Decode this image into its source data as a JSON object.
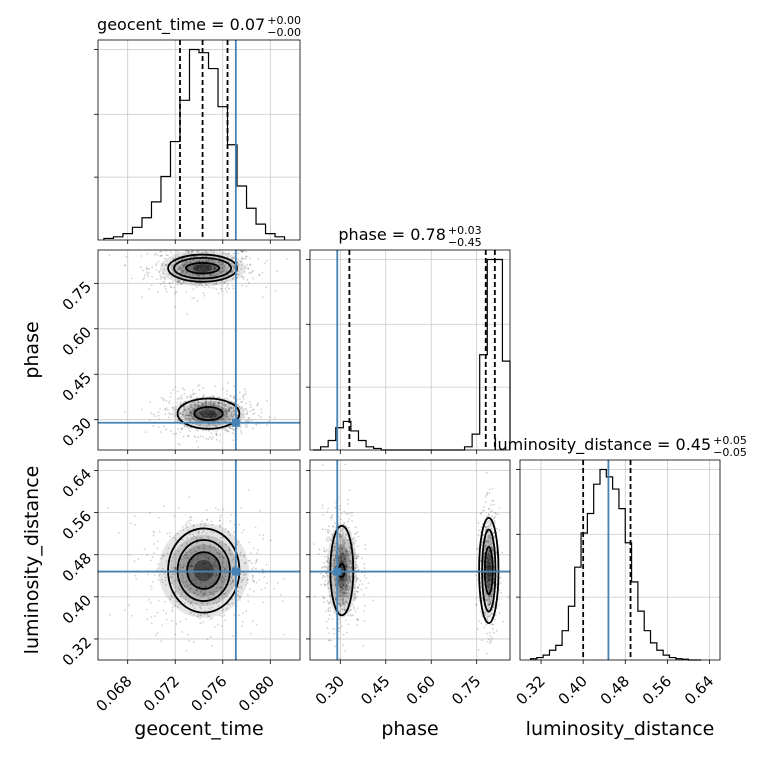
{
  "chart_data": {
    "type": "corner",
    "truth_color": "#4682b4",
    "parameters": [
      "geocent_time",
      "phase",
      "luminosity_distance"
    ],
    "grid": true,
    "subplots": [
      {
        "kind": "histogram",
        "parameter": "geocent_time",
        "title_main": "geocent_time = 0.07",
        "title_sup": "+0.00",
        "title_sub": "−0.00",
        "xlim": [
          0.0655,
          0.0825
        ],
        "bin_edges": [
          0.066,
          0.0668,
          0.0676,
          0.0684,
          0.0692,
          0.07,
          0.0708,
          0.0716,
          0.0724,
          0.0732,
          0.074,
          0.0748,
          0.0756,
          0.0764,
          0.0772,
          0.078,
          0.0788,
          0.0796,
          0.0804,
          0.0812
        ],
        "counts": [
          0.5,
          1,
          2,
          4,
          7,
          12,
          20,
          31,
          44,
          60,
          59,
          54,
          42,
          30,
          17,
          10,
          5,
          2,
          1
        ],
        "quantile_lines": [
          0.0724,
          0.0743,
          0.0764
        ],
        "truth": 0.0771
      },
      {
        "kind": "histogram",
        "parameter": "phase",
        "title_main": "phase = 0.78",
        "title_sup": "+0.03",
        "title_sub": "−0.45",
        "xlim": [
          0.2,
          0.86
        ],
        "bin_edges": [
          0.21,
          0.235,
          0.26,
          0.285,
          0.31,
          0.335,
          0.36,
          0.385,
          0.41,
          0.435,
          0.46,
          0.485,
          0.51,
          0.535,
          0.56,
          0.585,
          0.61,
          0.635,
          0.66,
          0.685,
          0.71,
          0.735,
          0.76,
          0.785,
          0.81,
          0.835,
          0.86
        ],
        "counts": [
          0,
          1,
          3,
          7,
          9,
          6,
          3,
          1,
          0.5,
          0,
          0,
          0,
          0,
          0,
          0,
          0,
          0,
          0,
          0,
          0,
          1,
          5,
          30,
          60,
          60,
          28
        ],
        "quantile_lines": [
          0.33,
          0.78,
          0.81
        ],
        "truth": 0.29
      },
      {
        "kind": "scatter2d",
        "x_parameter": "geocent_time",
        "y_parameter": "phase",
        "xlim": [
          0.0655,
          0.0825
        ],
        "ylim": [
          0.2,
          0.86
        ],
        "clusters": [
          {
            "center": [
              0.0743,
              0.8
            ],
            "spread": [
              0.0018,
              0.03
            ],
            "contours": [
              [
                0.0029,
                0.045
              ],
              [
                0.0024,
                0.034
              ],
              [
                0.0014,
                0.017
              ]
            ]
          },
          {
            "center": [
              0.0748,
              0.32
            ],
            "spread": [
              0.0015,
              0.028
            ],
            "contours": [
              [
                0.0026,
                0.05
              ],
              [
                0.0012,
                0.022
              ]
            ]
          }
        ],
        "truth": [
          0.0771,
          0.29
        ]
      },
      {
        "kind": "histogram",
        "parameter": "luminosity_distance",
        "title_main": "luminosity_distance = 0.45",
        "title_sup": "+0.05",
        "title_sub": "−0.05",
        "xlim": [
          0.28,
          0.66
        ],
        "bin_edges": [
          0.3,
          0.312,
          0.324,
          0.336,
          0.348,
          0.36,
          0.372,
          0.384,
          0.396,
          0.408,
          0.42,
          0.432,
          0.444,
          0.456,
          0.468,
          0.48,
          0.492,
          0.504,
          0.516,
          0.528,
          0.54,
          0.552,
          0.564,
          0.576,
          0.588,
          0.6,
          0.612,
          0.624
        ],
        "counts": [
          0.5,
          1,
          2,
          4,
          6,
          12,
          22,
          38,
          52,
          60,
          72,
          78,
          75,
          70,
          62,
          48,
          32,
          20,
          12,
          7,
          4,
          2,
          1,
          0.5,
          0.3,
          0,
          0
        ],
        "quantile_lines": [
          0.4,
          0.49
        ],
        "truth": 0.448
      },
      {
        "kind": "scatter2d",
        "x_parameter": "geocent_time",
        "y_parameter": "luminosity_distance",
        "xlim": [
          0.0655,
          0.0825
        ],
        "ylim": [
          0.28,
          0.66
        ],
        "clusters": [
          {
            "center": [
              0.0744,
              0.45
            ],
            "spread": [
              0.0019,
              0.045
            ],
            "contours": [
              [
                0.003,
                0.08
              ],
              [
                0.0022,
                0.058
              ],
              [
                0.0014,
                0.035
              ]
            ]
          }
        ],
        "truth": [
          0.0771,
          0.448
        ]
      },
      {
        "kind": "scatter2d",
        "x_parameter": "phase",
        "y_parameter": "luminosity_distance",
        "xlim": [
          0.2,
          0.86
        ],
        "ylim": [
          0.28,
          0.66
        ],
        "clusters": [
          {
            "center": [
              0.305,
              0.45
            ],
            "spread": [
              0.025,
              0.045
            ],
            "contours": [
              [
                0.038,
                0.085
              ],
              [
                0.01,
                0.012
              ]
            ]
          },
          {
            "center": [
              0.79,
              0.45
            ],
            "spread": [
              0.012,
              0.045
            ],
            "contours": [
              [
                0.032,
                0.1
              ],
              [
                0.022,
                0.078
              ],
              [
                0.013,
                0.045
              ]
            ]
          }
        ],
        "truth": [
          0.29,
          0.448
        ]
      }
    ],
    "axes": {
      "geocent_time": {
        "label": "geocent_time",
        "ticks": [
          0.068,
          0.072,
          0.076,
          0.08
        ],
        "tick_labels": [
          "0.068",
          "0.072",
          "0.076",
          "0.080"
        ]
      },
      "phase": {
        "label": "phase",
        "ticks": [
          0.3,
          0.45,
          0.6,
          0.75
        ],
        "tick_labels": [
          "0.30",
          "0.45",
          "0.60",
          "0.75"
        ]
      },
      "luminosity_distance": {
        "label": "luminosity_distance",
        "ticks": [
          0.32,
          0.4,
          0.48,
          0.56,
          0.64
        ],
        "tick_labels": [
          "0.32",
          "0.40",
          "0.48",
          "0.56",
          "0.64"
        ]
      }
    }
  }
}
